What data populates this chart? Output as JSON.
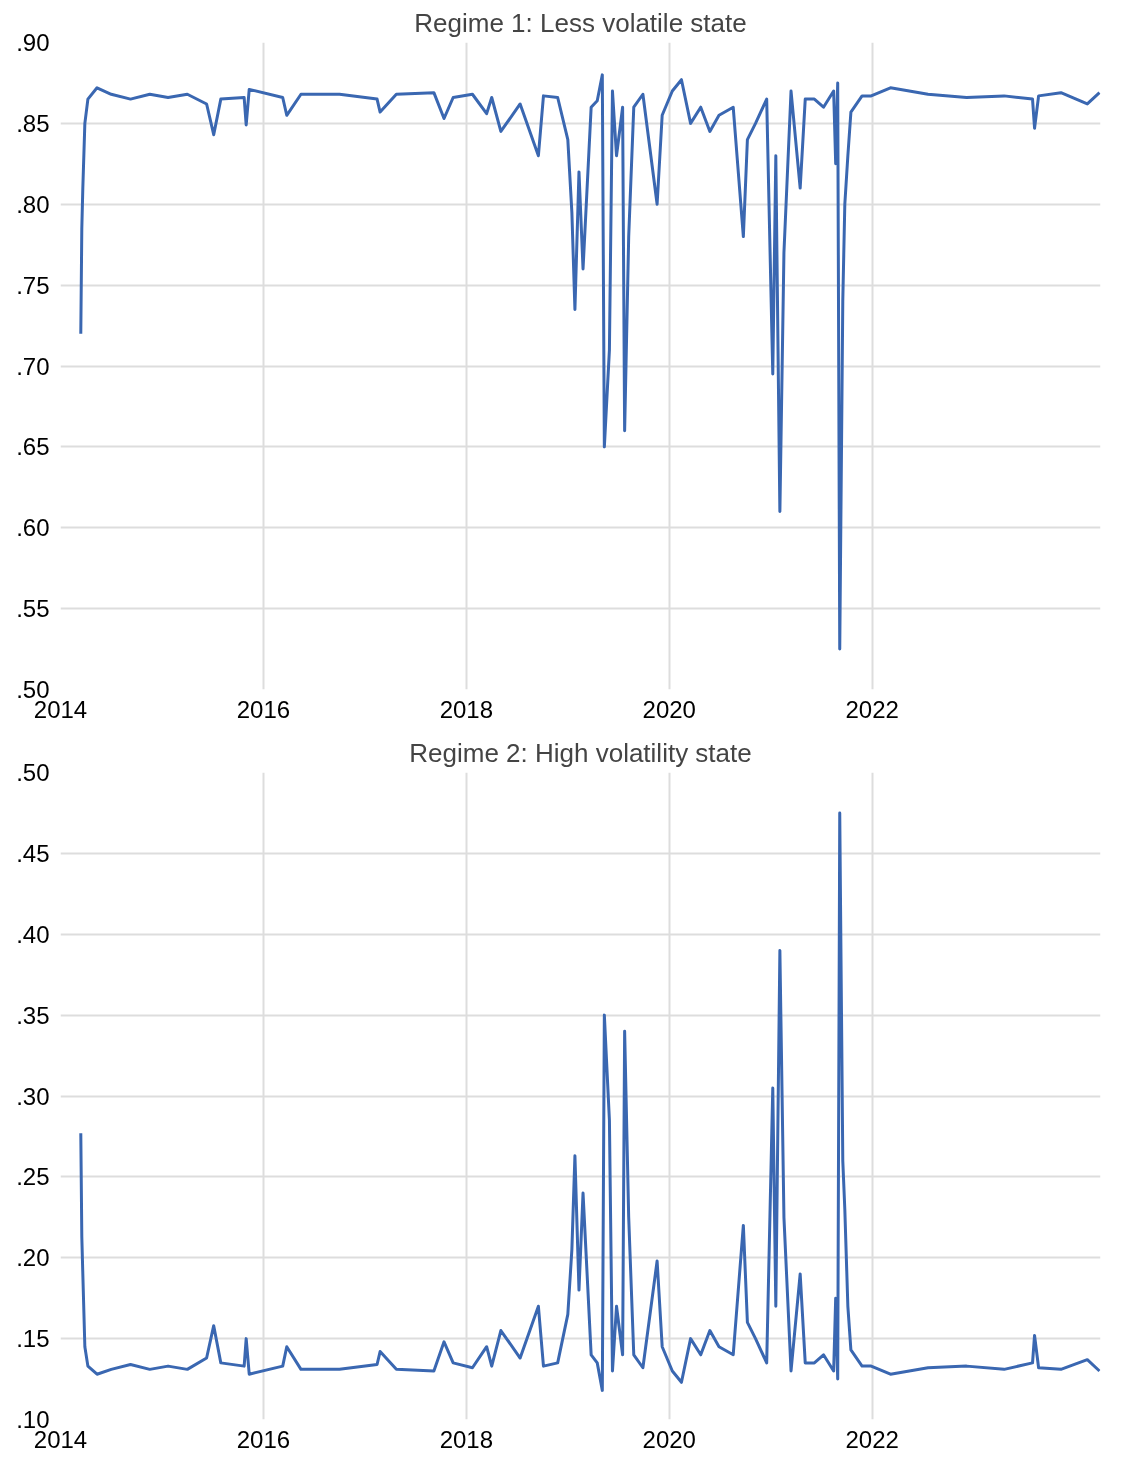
{
  "chart_data": [
    {
      "type": "line",
      "title": "Regime 1: Less volatile state",
      "grid": true,
      "xlim": [
        2014.0,
        2024.25
      ],
      "xticks": [
        2014,
        2016,
        2018,
        2020,
        2022
      ],
      "ylim": [
        0.5,
        0.9
      ],
      "yticks": [
        {
          "value": 0.5,
          "label": ".50"
        },
        {
          "value": 0.55,
          "label": ".55"
        },
        {
          "value": 0.6,
          "label": ".60"
        },
        {
          "value": 0.65,
          "label": ".65"
        },
        {
          "value": 0.7,
          "label": ".70"
        },
        {
          "value": 0.75,
          "label": ".75"
        },
        {
          "value": 0.8,
          "label": ".80"
        },
        {
          "value": 0.85,
          "label": ".85"
        },
        {
          "value": 0.9,
          "label": ".90"
        }
      ],
      "series": [
        {
          "color": "#3a67b1",
          "x": [
            2014.2,
            2014.21,
            2014.22,
            2014.24,
            2014.27,
            2014.36,
            2014.5,
            2014.69,
            2014.88,
            2015.06,
            2015.25,
            2015.44,
            2015.51,
            2015.58,
            2015.81,
            2015.83,
            2015.86,
            2016.19,
            2016.23,
            2016.37,
            2016.75,
            2017.12,
            2017.15,
            2017.31,
            2017.68,
            2017.78,
            2017.87,
            2018.06,
            2018.2,
            2018.25,
            2018.34,
            2018.53,
            2018.71,
            2018.76,
            2018.9,
            2019.0,
            2019.04,
            2019.07,
            2019.11,
            2019.15,
            2019.23,
            2019.29,
            2019.34,
            2019.36,
            2019.41,
            2019.44,
            2019.48,
            2019.54,
            2019.56,
            2019.6,
            2019.65,
            2019.74,
            2019.88,
            2019.93,
            2020.03,
            2020.12,
            2020.21,
            2020.31,
            2020.4,
            2020.49,
            2020.63,
            2020.73,
            2020.77,
            2020.85,
            2020.96,
            2021.02,
            2021.05,
            2021.09,
            2021.13,
            2021.2,
            2021.29,
            2021.34,
            2021.43,
            2021.52,
            2021.62,
            2021.64,
            2021.66,
            2021.68,
            2021.71,
            2021.73,
            2021.76,
            2021.79,
            2021.9,
            2021.99,
            2022.18,
            2022.55,
            2022.93,
            2023.3,
            2023.58,
            2023.6,
            2023.64,
            2023.86,
            2024.12,
            2024.24
          ],
          "values": [
            0.72,
            0.785,
            0.81,
            0.85,
            0.865,
            0.872,
            0.868,
            0.865,
            0.868,
            0.866,
            0.868,
            0.862,
            0.843,
            0.865,
            0.866,
            0.849,
            0.871,
            0.866,
            0.855,
            0.868,
            0.868,
            0.865,
            0.857,
            0.868,
            0.869,
            0.853,
            0.866,
            0.868,
            0.856,
            0.866,
            0.845,
            0.862,
            0.83,
            0.867,
            0.866,
            0.84,
            0.795,
            0.735,
            0.82,
            0.76,
            0.86,
            0.864,
            0.88,
            0.65,
            0.71,
            0.87,
            0.83,
            0.86,
            0.66,
            0.78,
            0.86,
            0.868,
            0.8,
            0.855,
            0.87,
            0.877,
            0.85,
            0.86,
            0.845,
            0.855,
            0.86,
            0.78,
            0.84,
            0.85,
            0.865,
            0.695,
            0.83,
            0.61,
            0.77,
            0.87,
            0.81,
            0.865,
            0.865,
            0.86,
            0.87,
            0.825,
            0.875,
            0.525,
            0.74,
            0.8,
            0.83,
            0.857,
            0.867,
            0.867,
            0.872,
            0.868,
            0.866,
            0.867,
            0.865,
            0.847,
            0.867,
            0.869,
            0.862,
            0.869
          ]
        }
      ]
    },
    {
      "type": "line",
      "title": "Regime 2: High volatility state",
      "grid": true,
      "xlim": [
        2014.0,
        2024.25
      ],
      "xticks": [
        2014,
        2016,
        2018,
        2020,
        2022
      ],
      "ylim": [
        0.1,
        0.5
      ],
      "yticks": [
        {
          "value": 0.1,
          "label": ".10"
        },
        {
          "value": 0.15,
          "label": ".15"
        },
        {
          "value": 0.2,
          "label": ".20"
        },
        {
          "value": 0.25,
          "label": ".25"
        },
        {
          "value": 0.3,
          "label": ".30"
        },
        {
          "value": 0.35,
          "label": ".35"
        },
        {
          "value": 0.4,
          "label": ".40"
        },
        {
          "value": 0.45,
          "label": ".45"
        },
        {
          "value": 0.5,
          "label": ".50"
        }
      ],
      "series": [
        {
          "color": "#3a67b1",
          "x": [
            2014.2,
            2014.21,
            2014.22,
            2014.24,
            2014.27,
            2014.36,
            2014.5,
            2014.69,
            2014.88,
            2015.06,
            2015.25,
            2015.44,
            2015.51,
            2015.58,
            2015.81,
            2015.83,
            2015.86,
            2016.19,
            2016.23,
            2016.37,
            2016.75,
            2017.12,
            2017.15,
            2017.31,
            2017.68,
            2017.78,
            2017.87,
            2018.06,
            2018.2,
            2018.25,
            2018.34,
            2018.53,
            2018.71,
            2018.76,
            2018.9,
            2019.0,
            2019.04,
            2019.07,
            2019.11,
            2019.15,
            2019.23,
            2019.29,
            2019.34,
            2019.36,
            2019.41,
            2019.44,
            2019.48,
            2019.54,
            2019.56,
            2019.6,
            2019.65,
            2019.74,
            2019.88,
            2019.93,
            2020.03,
            2020.12,
            2020.21,
            2020.31,
            2020.4,
            2020.49,
            2020.63,
            2020.73,
            2020.77,
            2020.85,
            2020.96,
            2021.02,
            2021.05,
            2021.09,
            2021.13,
            2021.2,
            2021.29,
            2021.34,
            2021.43,
            2021.52,
            2021.62,
            2021.64,
            2021.66,
            2021.68,
            2021.71,
            2021.73,
            2021.76,
            2021.79,
            2021.9,
            2021.99,
            2022.18,
            2022.55,
            2022.93,
            2023.3,
            2023.58,
            2023.6,
            2023.64,
            2023.86,
            2024.12,
            2024.24
          ],
          "values": [
            0.277,
            0.213,
            0.19,
            0.145,
            0.133,
            0.128,
            0.131,
            0.134,
            0.131,
            0.133,
            0.131,
            0.138,
            0.158,
            0.135,
            0.133,
            0.15,
            0.128,
            0.133,
            0.145,
            0.131,
            0.131,
            0.134,
            0.142,
            0.131,
            0.13,
            0.148,
            0.135,
            0.132,
            0.145,
            0.133,
            0.155,
            0.138,
            0.17,
            0.133,
            0.135,
            0.165,
            0.205,
            0.263,
            0.18,
            0.24,
            0.14,
            0.135,
            0.118,
            0.35,
            0.285,
            0.13,
            0.17,
            0.14,
            0.34,
            0.225,
            0.14,
            0.132,
            0.198,
            0.145,
            0.13,
            0.123,
            0.15,
            0.14,
            0.155,
            0.145,
            0.14,
            0.22,
            0.16,
            0.15,
            0.135,
            0.305,
            0.17,
            0.39,
            0.225,
            0.13,
            0.19,
            0.135,
            0.135,
            0.14,
            0.13,
            0.175,
            0.125,
            0.475,
            0.26,
            0.23,
            0.17,
            0.143,
            0.133,
            0.133,
            0.128,
            0.132,
            0.133,
            0.131,
            0.135,
            0.152,
            0.132,
            0.131,
            0.137,
            0.13
          ]
        }
      ]
    }
  ]
}
